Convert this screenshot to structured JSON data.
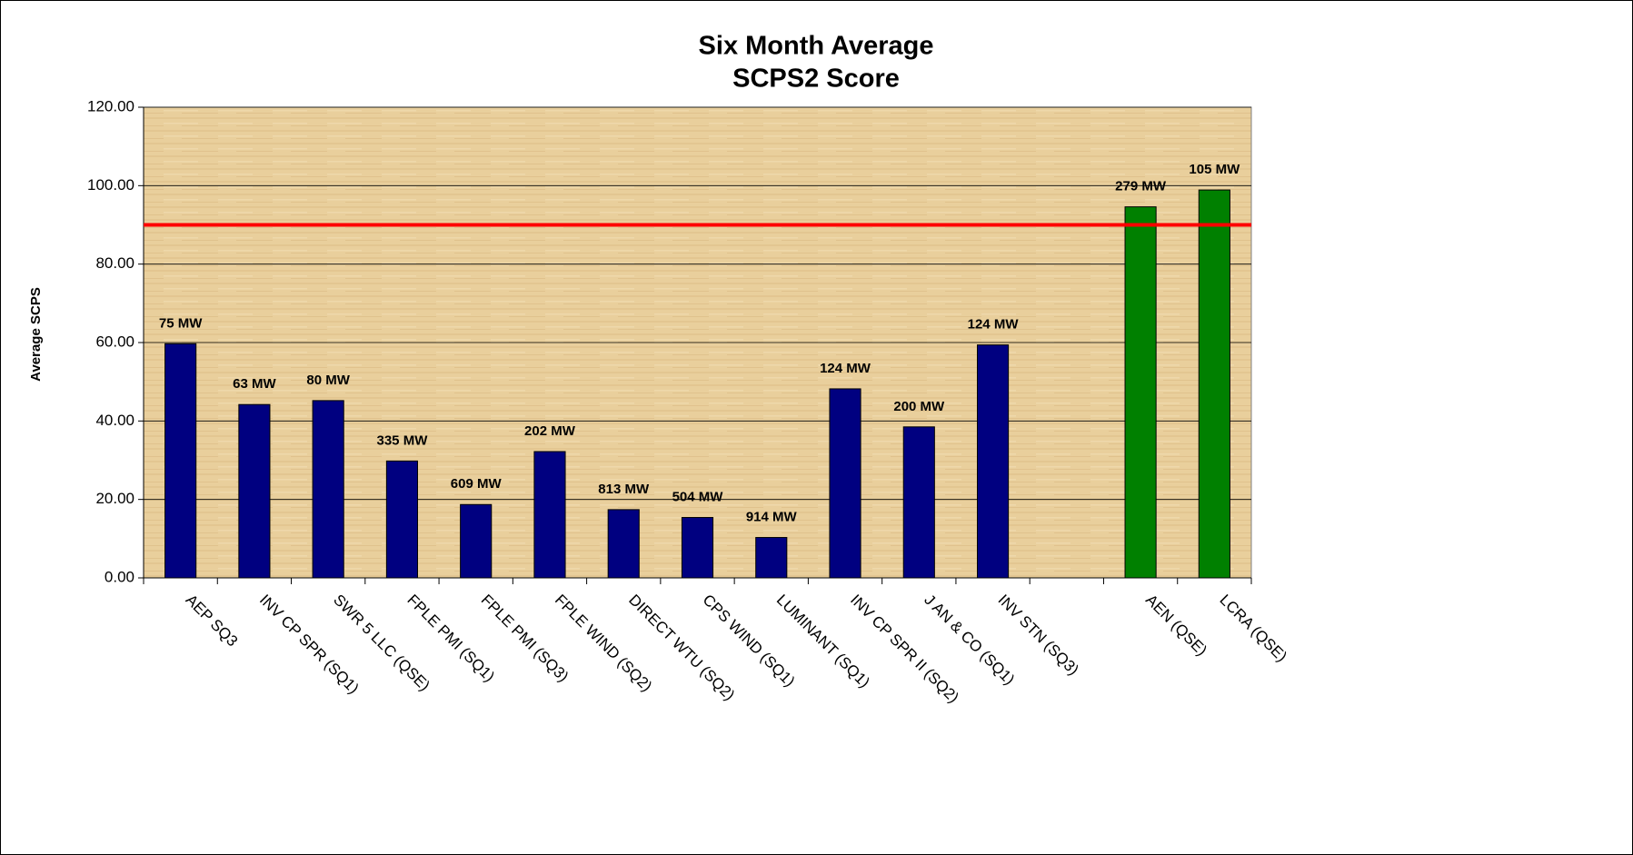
{
  "chart_data": {
    "type": "bar",
    "title": [
      "Six Month Average",
      "SCPS2 Score"
    ],
    "y_label": "Average SCPS",
    "categories": [
      "AEP SQ3",
      "INV CP SPR (SQ1)",
      "SWR 5 LLC (QSE)",
      "FPLE PMI (SQ1)",
      "FPLE PMI (SQ3)",
      "FPLE WIND (SQ2)",
      "DIRECT WTU (SQ2)",
      "CPS WIND (SQ1)",
      "LUMINANT (SQ1)",
      "INV CP SPR II (SQ2)",
      "J AN & CO (SQ1)",
      "INV STN (SQ3)",
      null,
      "AEN (QSE)",
      "LCRA (QSE)"
    ],
    "values": [
      59.7,
      44.2,
      45.2,
      29.8,
      18.7,
      32.2,
      17.4,
      15.4,
      10.3,
      48.2,
      38.5,
      59.4,
      null,
      94.6,
      98.9
    ],
    "annotations": [
      "75 MW",
      "63 MW",
      "80 MW",
      "335 MW",
      "609 MW",
      "202 MW",
      "813 MW",
      "504 MW",
      "914 MW",
      "124 MW",
      "200 MW",
      "124 MW",
      null,
      "279 MW",
      "105 MW"
    ],
    "colors": [
      "#000080",
      "#000080",
      "#000080",
      "#000080",
      "#000080",
      "#000080",
      "#000080",
      "#000080",
      "#000080",
      "#000080",
      "#000080",
      "#000080",
      null,
      "#008000",
      "#008000"
    ],
    "ylim": [
      0,
      120
    ],
    "yticks": [
      {
        "value": 0,
        "label": "0.00"
      },
      {
        "value": 20,
        "label": "20.00"
      },
      {
        "value": 40,
        "label": "40.00"
      },
      {
        "value": 60,
        "label": "60.00"
      },
      {
        "value": 80,
        "label": "80.00"
      },
      {
        "value": 100,
        "label": "100.00"
      },
      {
        "value": 120,
        "label": "120.00"
      }
    ],
    "grid": true,
    "reference_line": {
      "value": 90,
      "color": "#ff0000"
    }
  }
}
